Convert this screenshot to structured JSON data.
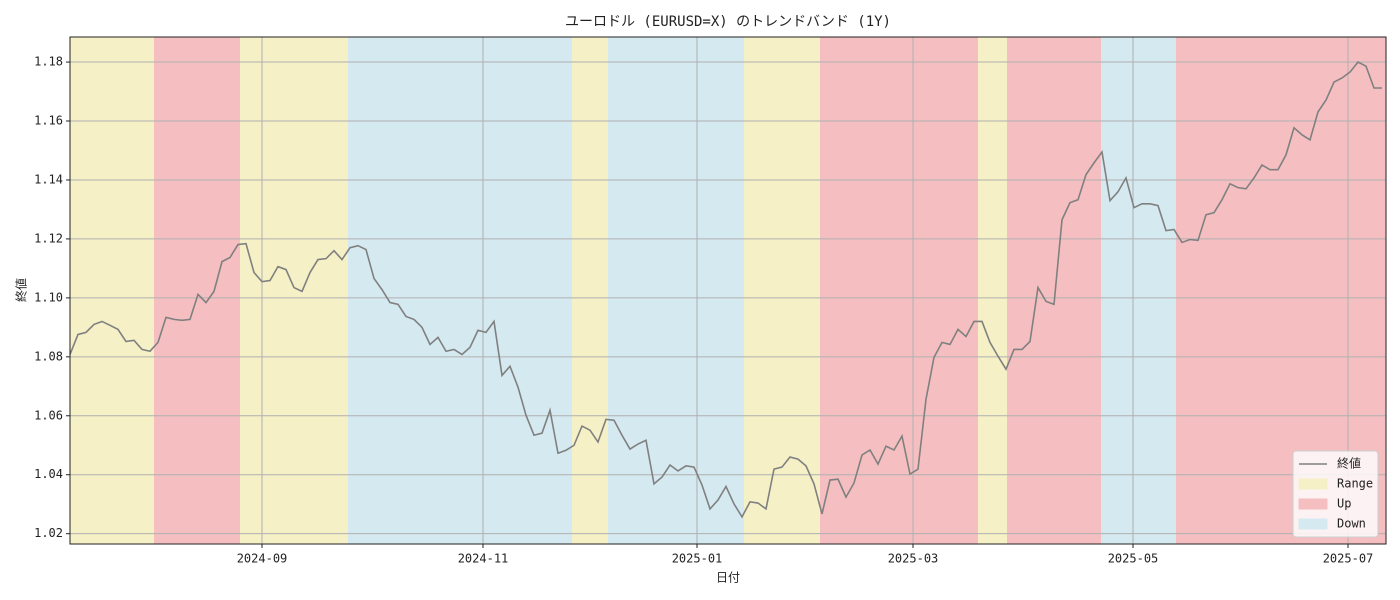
{
  "chart_data": {
    "type": "line",
    "title": "ユーロドル (EURUSD=X) のトレンドバンド (1Y)",
    "x_label": "日付",
    "y_label": "終値",
    "xlim": [
      0,
      164.5
    ],
    "xticks": [
      {
        "value": 24,
        "label": "2024-09"
      },
      {
        "value": 51.625,
        "label": "2024-11"
      },
      {
        "value": 78.375,
        "label": "2025-01"
      },
      {
        "value": 105.375,
        "label": "2025-03"
      },
      {
        "value": 132.875,
        "label": "2025-05"
      },
      {
        "value": 159.75,
        "label": "2025-07"
      }
    ],
    "ylim": [
      1.0165,
      1.1885
    ],
    "yticks": [
      1.02,
      1.04,
      1.06,
      1.08,
      {
        "value": 1.1,
        "label": "1.10"
      },
      1.12,
      1.14,
      1.16,
      1.18
    ],
    "grid": true,
    "legend": "lower right",
    "series": [
      {
        "name": "終値",
        "color": "#808080",
        "values": [
          1.0808,
          1.0876,
          1.0883,
          1.091,
          1.092,
          1.0907,
          1.0893,
          1.0852,
          1.0856,
          1.0825,
          1.0819,
          1.0849,
          1.0934,
          1.0927,
          1.0924,
          1.0927,
          1.1012,
          1.0984,
          1.1022,
          1.1123,
          1.1137,
          1.1181,
          1.1184,
          1.1086,
          1.1055,
          1.1059,
          1.1106,
          1.1096,
          1.1035,
          1.1022,
          1.1086,
          1.113,
          1.1133,
          1.116,
          1.113,
          1.117,
          1.1177,
          1.1164,
          1.1066,
          1.1028,
          1.0984,
          1.0978,
          1.0937,
          1.0927,
          1.09,
          1.0842,
          1.0866,
          1.0819,
          1.0825,
          1.0808,
          1.0832,
          1.089,
          1.0883,
          1.092,
          1.0737,
          1.0768,
          1.0697,
          1.0602,
          1.0534,
          1.0541,
          1.0619,
          1.0473,
          1.0483,
          1.05,
          1.0565,
          1.0551,
          1.0511,
          1.0588,
          1.0585,
          1.0534,
          1.0487,
          1.0504,
          1.0517,
          1.0369,
          1.0392,
          1.0433,
          1.0413,
          1.043,
          1.0426,
          1.0365,
          1.0284,
          1.0314,
          1.036,
          1.0301,
          1.0257,
          1.0308,
          1.0304,
          1.0284,
          1.0419,
          1.0426,
          1.046,
          1.0453,
          1.043,
          1.0369,
          1.0267,
          1.0382,
          1.0385,
          1.0324,
          1.0372,
          1.0467,
          1.0484,
          1.0436,
          1.0497,
          1.0484,
          1.0531,
          1.0402,
          1.0419,
          1.0656,
          1.0798,
          1.0849,
          1.0842,
          1.0893,
          1.0869,
          1.092,
          1.092,
          1.0849,
          1.0802,
          1.0758,
          1.0825,
          1.0825,
          1.0852,
          1.1035,
          1.0988,
          1.0978,
          1.1265,
          1.1323,
          1.1333,
          1.1418,
          1.1458,
          1.1495,
          1.133,
          1.136,
          1.1407,
          1.1306,
          1.1319,
          1.1319,
          1.1313,
          1.1228,
          1.1232,
          1.1188,
          1.1198,
          1.1195,
          1.1282,
          1.1289,
          1.1333,
          1.1387,
          1.1374,
          1.137,
          1.1407,
          1.1451,
          1.1435,
          1.1435,
          1.1485,
          1.1577,
          1.1553,
          1.1536,
          1.1631,
          1.1671,
          1.1732,
          1.1746,
          1.1766,
          1.18,
          1.1786,
          1.1712,
          1.1712
        ]
      }
    ],
    "band_types": [
      {
        "name": "Range",
        "color": "#f5f0c6"
      },
      {
        "name": "Up",
        "color": "#f5bfc1"
      },
      {
        "name": "Down",
        "color": "#d5e9f0"
      }
    ],
    "bands": [
      {
        "type": "Range",
        "start": 0,
        "end": 10.5
      },
      {
        "type": "Up",
        "start": 10.5,
        "end": 21.25
      },
      {
        "type": "Range",
        "start": 21.25,
        "end": 34.75
      },
      {
        "type": "Down",
        "start": 34.75,
        "end": 62.75
      },
      {
        "type": "Range",
        "start": 62.75,
        "end": 67.25
      },
      {
        "type": "Down",
        "start": 67.25,
        "end": 84.25
      },
      {
        "type": "Range",
        "start": 84.25,
        "end": 93.75
      },
      {
        "type": "Up",
        "start": 93.75,
        "end": 113.5
      },
      {
        "type": "Range",
        "start": 113.5,
        "end": 117.125
      },
      {
        "type": "Up",
        "start": 117.125,
        "end": 128.875
      },
      {
        "type": "Down",
        "start": 128.875,
        "end": 138.25
      },
      {
        "type": "Up",
        "start": 138.25,
        "end": 164.5
      }
    ]
  }
}
